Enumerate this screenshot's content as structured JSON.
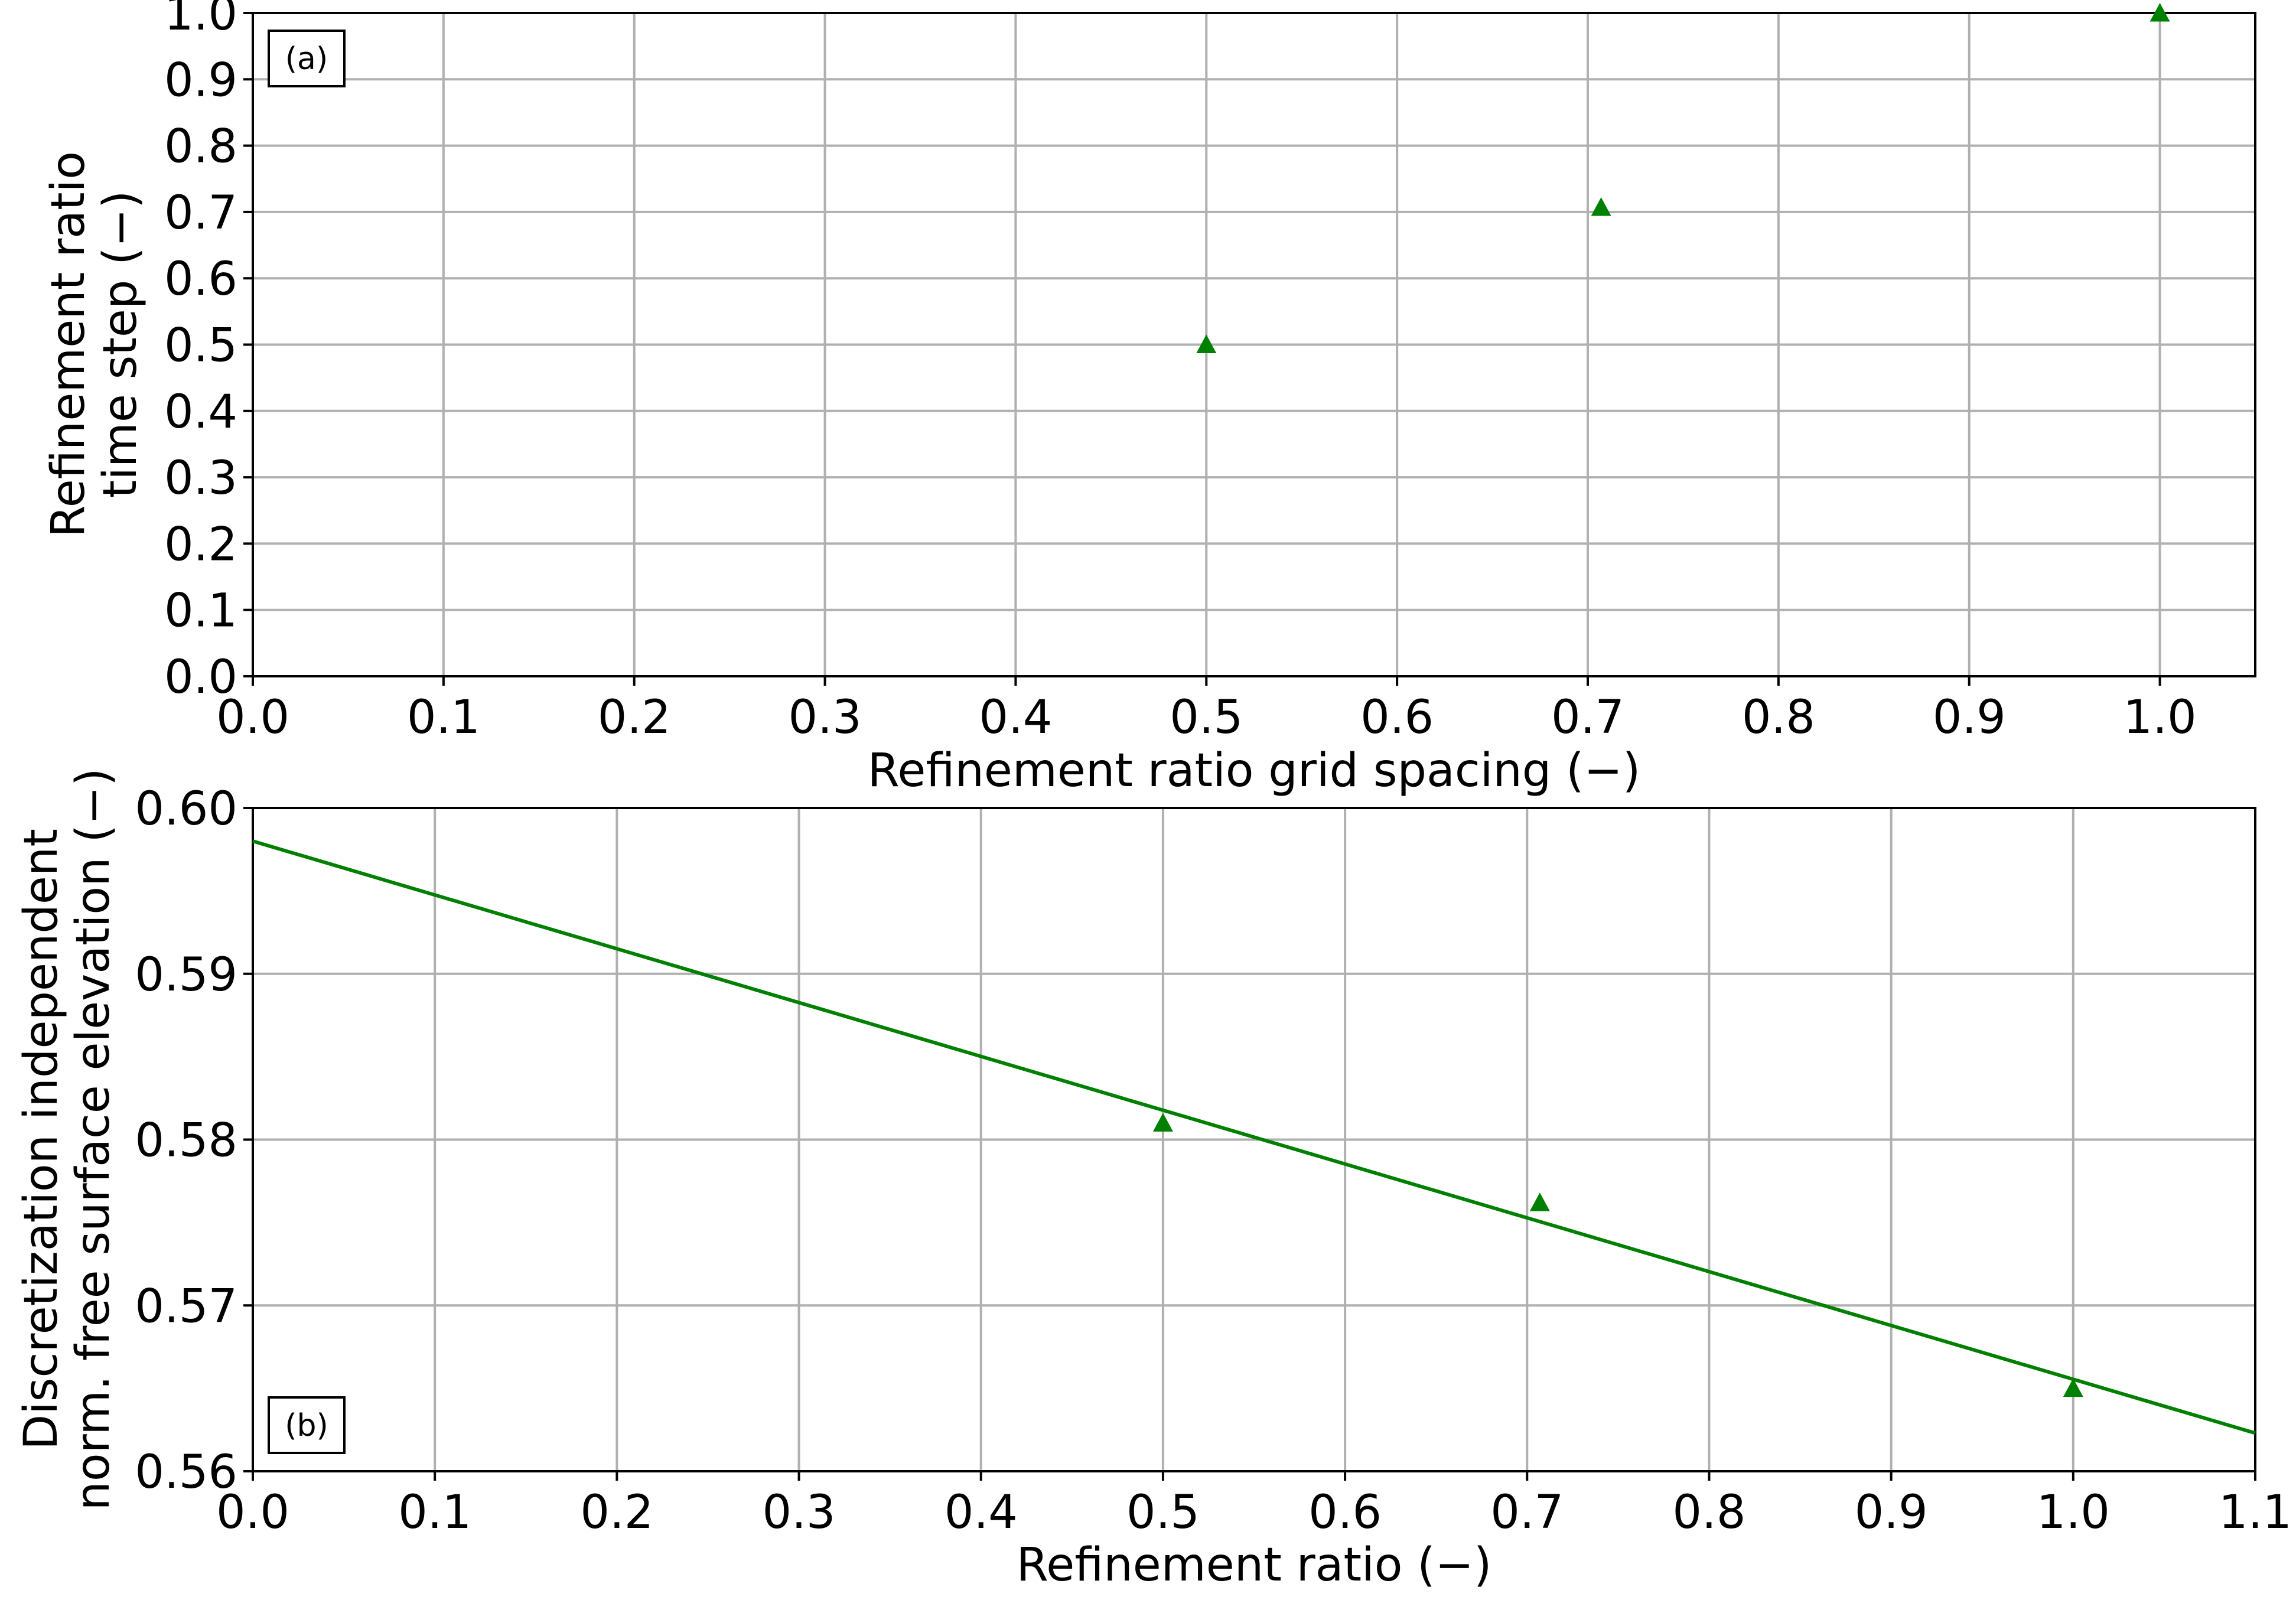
{
  "chart_data": [
    {
      "id": "panel-a",
      "type": "scatter",
      "panel_label": "(a)",
      "xlabel": "Refinement ratio grid spacing (−)",
      "ylabel_lines": [
        "Refinement ratio",
        "time step (−)"
      ],
      "xlim": [
        0.0,
        1.05
      ],
      "ylim": [
        0.0,
        1.0
      ],
      "xticks": [
        0.0,
        0.1,
        0.2,
        0.3,
        0.4,
        0.5,
        0.6,
        0.7,
        0.8,
        0.9,
        1.0
      ],
      "xtick_labels": [
        "0.0",
        "0.1",
        "0.2",
        "0.3",
        "0.4",
        "0.5",
        "0.6",
        "0.7",
        "0.8",
        "0.9",
        "1.0"
      ],
      "yticks": [
        0.0,
        0.1,
        0.2,
        0.3,
        0.4,
        0.5,
        0.6,
        0.7,
        0.8,
        0.9,
        1.0
      ],
      "ytick_labels": [
        "0.0",
        "0.1",
        "0.2",
        "0.3",
        "0.4",
        "0.5",
        "0.6",
        "0.7",
        "0.8",
        "0.9",
        "1.0"
      ],
      "grid": true,
      "marker": "triangle",
      "color": "#008000",
      "points": [
        {
          "x": 0.5,
          "y": 0.5
        },
        {
          "x": 0.707,
          "y": 0.707
        },
        {
          "x": 1.0,
          "y": 1.0
        }
      ]
    },
    {
      "id": "panel-b",
      "type": "scatter",
      "panel_label": "(b)",
      "xlabel": "Refinement ratio (−)",
      "ylabel_lines": [
        "Discretization independent",
        "norm. free surface elevation (−)"
      ],
      "xlim": [
        0.0,
        1.1
      ],
      "ylim": [
        0.56,
        0.6
      ],
      "xticks": [
        0.0,
        0.1,
        0.2,
        0.3,
        0.4,
        0.5,
        0.6,
        0.7,
        0.8,
        0.9,
        1.0,
        1.1
      ],
      "xtick_labels": [
        "0.0",
        "0.1",
        "0.2",
        "0.3",
        "0.4",
        "0.5",
        "0.6",
        "0.7",
        "0.8",
        "0.9",
        "1.0",
        "1.1"
      ],
      "yticks": [
        0.56,
        0.57,
        0.58,
        0.59,
        0.6
      ],
      "ytick_labels": [
        "0.56",
        "0.57",
        "0.58",
        "0.59",
        "0.60"
      ],
      "grid": true,
      "marker": "triangle",
      "color": "#008000",
      "points": [
        {
          "x": 0.5,
          "y": 0.581
        },
        {
          "x": 0.707,
          "y": 0.5762
        },
        {
          "x": 1.0,
          "y": 0.565
        }
      ],
      "fit_line": {
        "x": [
          0.0,
          1.1
        ],
        "y": [
          0.598,
          0.5623
        ],
        "color": "#008000"
      }
    }
  ]
}
